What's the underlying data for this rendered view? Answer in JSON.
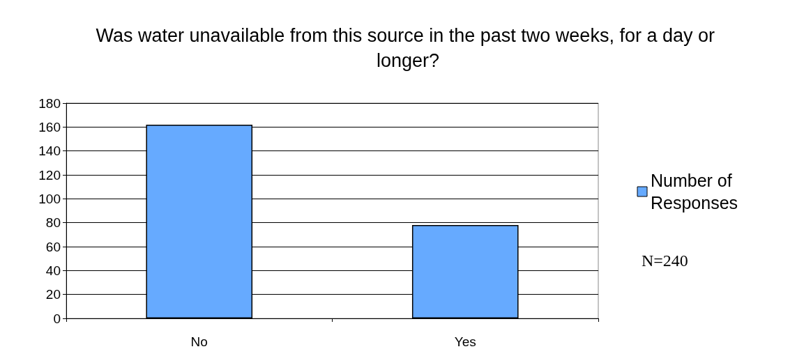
{
  "chart_data": {
    "type": "bar",
    "title": "Was water unavailable from this source in the past two weeks, for a day or longer?",
    "categories": [
      "No",
      "Yes"
    ],
    "series": [
      {
        "name": "Number of Responses",
        "color": "#66aaff",
        "values": [
          162,
          78
        ]
      }
    ],
    "ylim": [
      0,
      180
    ],
    "yticks": [
      0,
      20,
      40,
      60,
      80,
      100,
      120,
      140,
      160,
      180
    ],
    "grid": "y",
    "legend": "right",
    "annotations": [
      "N=240"
    ]
  }
}
